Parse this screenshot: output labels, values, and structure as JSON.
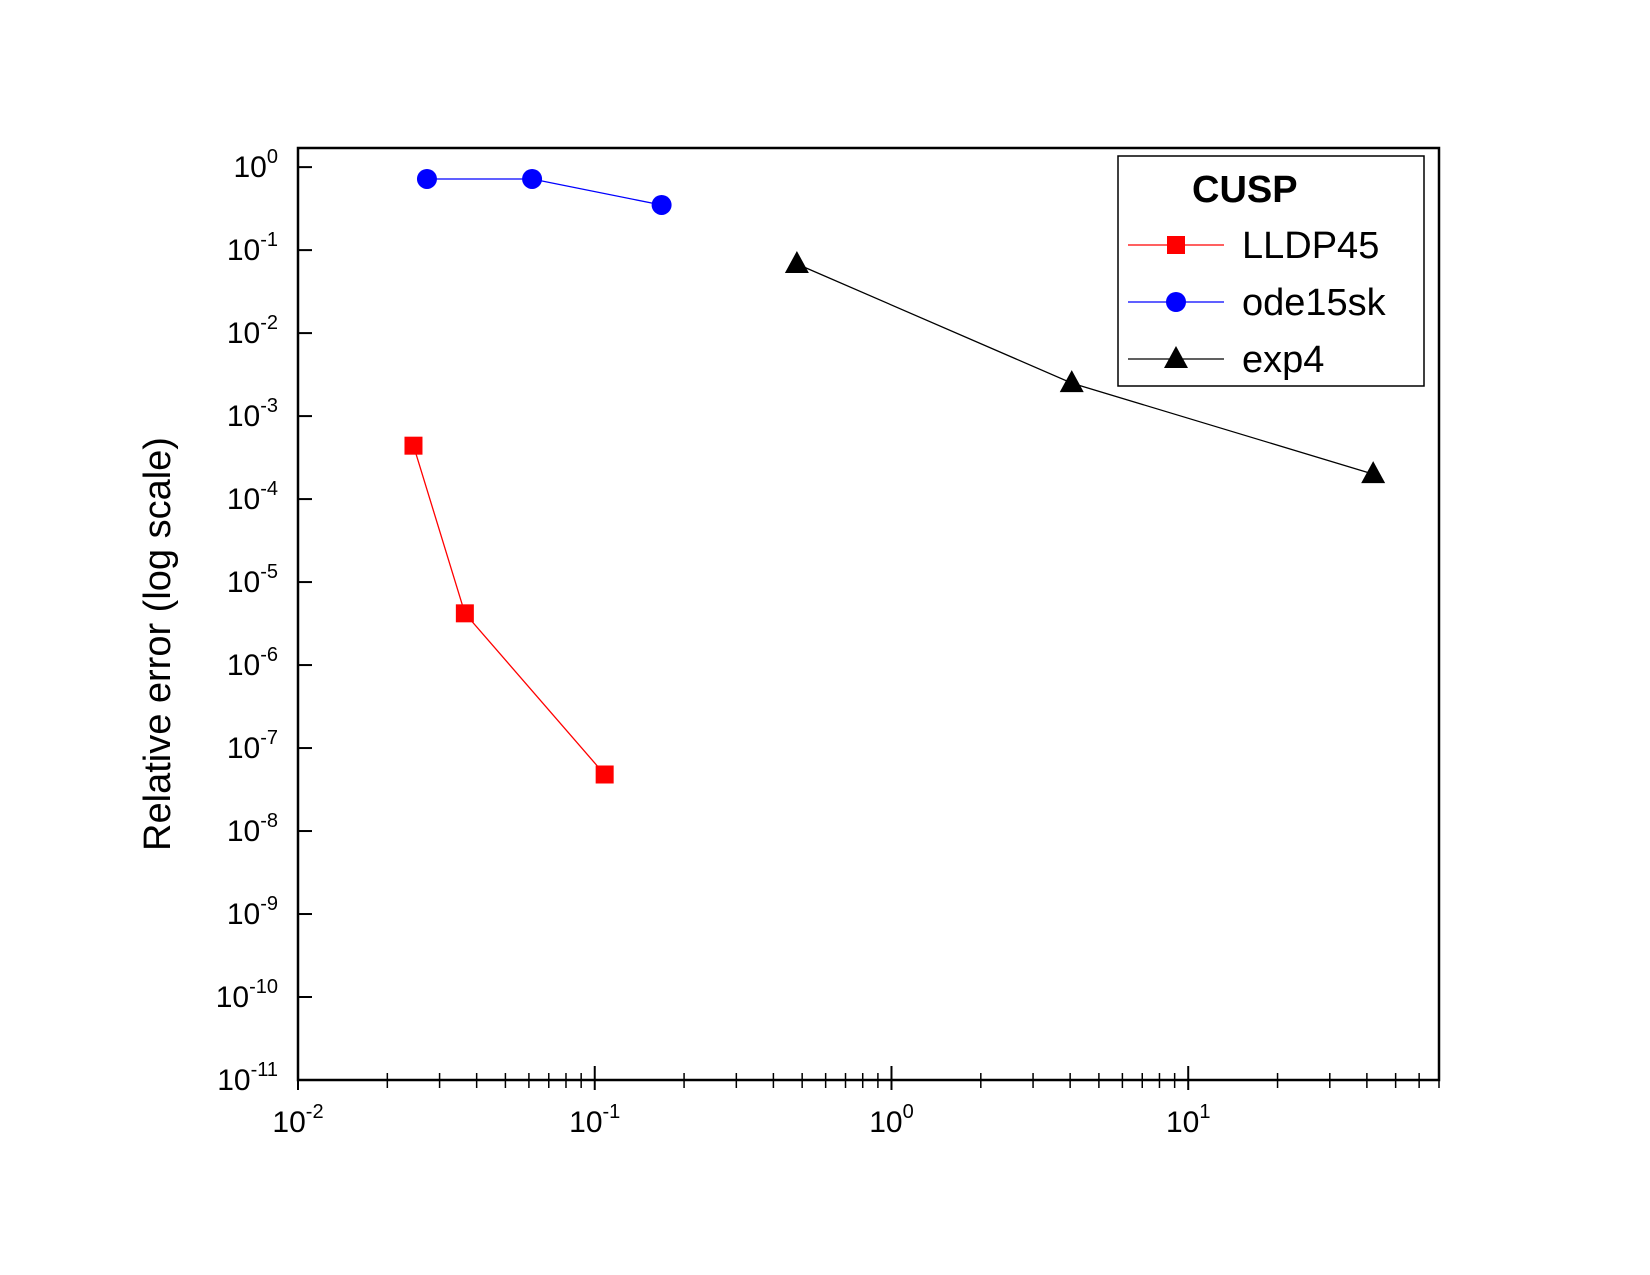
{
  "chart_data": {
    "type": "scatter",
    "title": "",
    "xlabel": "",
    "ylabel": "Relative error (log scale)",
    "xscale": "log",
    "yscale": "log",
    "xlim": [
      0.01,
      70
    ],
    "ylim": [
      1e-11,
      1.7
    ],
    "grid": false,
    "legend": {
      "title": "CUSP",
      "position": "top-right"
    },
    "x_ticks": [
      {
        "base": "10",
        "exp": "-2",
        "value": 0.01
      },
      {
        "base": "10",
        "exp": "-1",
        "value": 0.1
      },
      {
        "base": "10",
        "exp": "0",
        "value": 1
      },
      {
        "base": "10",
        "exp": "1",
        "value": 10
      }
    ],
    "y_ticks": [
      {
        "base": "10",
        "exp": "0",
        "value": 1
      },
      {
        "base": "10",
        "exp": "-1",
        "value": 0.1
      },
      {
        "base": "10",
        "exp": "-2",
        "value": 0.01
      },
      {
        "base": "10",
        "exp": "-3",
        "value": 0.001
      },
      {
        "base": "10",
        "exp": "-4",
        "value": 0.0001
      },
      {
        "base": "10",
        "exp": "-5",
        "value": 1e-05
      },
      {
        "base": "10",
        "exp": "-6",
        "value": 1e-06
      },
      {
        "base": "10",
        "exp": "-7",
        "value": 1e-07
      },
      {
        "base": "10",
        "exp": "-8",
        "value": 1e-08
      },
      {
        "base": "10",
        "exp": "-9",
        "value": 1e-09
      },
      {
        "base": "10",
        "exp": "-10",
        "value": 1e-10
      },
      {
        "base": "10",
        "exp": "-11",
        "value": 1e-11
      }
    ],
    "series": [
      {
        "name": "LLDP45",
        "color": "#ff0000",
        "marker": "square",
        "x": [
          0.0245,
          0.0365,
          0.108
        ],
        "y": [
          0.00044,
          4.2e-06,
          4.8e-08
        ]
      },
      {
        "name": "ode15sk",
        "color": "#0000ff",
        "marker": "circle",
        "x": [
          0.0272,
          0.0615,
          0.168
        ],
        "y": [
          0.72,
          0.72,
          0.35
        ]
      },
      {
        "name": "exp4",
        "color": "#000000",
        "marker": "triangle",
        "x": [
          0.48,
          4.05,
          42
        ],
        "y": [
          0.068,
          0.0025,
          0.0002
        ]
      }
    ]
  }
}
